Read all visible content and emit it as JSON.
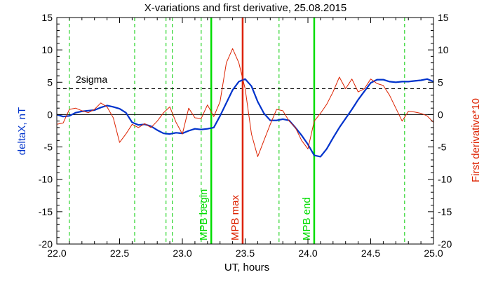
{
  "chart_data": {
    "type": "line",
    "title": "X-variations and first derivative, 25.08.2015",
    "xlabel": "UT, hours",
    "ylabel_left": "deltaX, nT",
    "ylabel_right": "First derivative*10",
    "xlim": [
      22.0,
      25.0
    ],
    "ylim_left": [
      -20,
      15
    ],
    "ylim_right": [
      -20,
      15
    ],
    "x_ticks": [
      "22.0",
      "22.5",
      "23.0",
      "23.5",
      "24.0",
      "24.5",
      "25.0"
    ],
    "y_ticks_left": [
      "-20",
      "-15",
      "-10",
      "-5",
      "0",
      "5",
      "10",
      "15"
    ],
    "y_ticks_right": [
      "-20",
      "-15",
      "-10",
      "-5",
      "0",
      "5",
      "10",
      "15"
    ],
    "colors": {
      "deltaX": "#0033cc",
      "derivative": "#dd2200",
      "mpb_bounds": "#00dd00",
      "mpb_max": "#dd2200",
      "markers": "#00cc00"
    },
    "threshold": {
      "label": "2sigma",
      "value": 4
    },
    "zero_line": 0,
    "vertical_lines": [
      {
        "x": 23.23,
        "label": "MPB begin",
        "color": "#00dd00"
      },
      {
        "x": 23.48,
        "label": "MPB max",
        "color": "#dd2200"
      },
      {
        "x": 24.05,
        "label": "MPB end",
        "color": "#00dd00"
      }
    ],
    "dashed_markers": [
      22.1,
      22.62,
      22.87,
      22.92,
      23.15,
      23.77,
      24.77
    ],
    "series": [
      {
        "name": "deltaX",
        "axis": "left",
        "x": [
          22.0,
          22.05,
          22.1,
          22.15,
          22.2,
          22.25,
          22.3,
          22.35,
          22.4,
          22.45,
          22.5,
          22.55,
          22.6,
          22.65,
          22.7,
          22.75,
          22.8,
          22.85,
          22.9,
          22.95,
          23.0,
          23.05,
          23.1,
          23.15,
          23.2,
          23.25,
          23.3,
          23.35,
          23.4,
          23.45,
          23.5,
          23.55,
          23.6,
          23.65,
          23.7,
          23.75,
          23.8,
          23.85,
          23.9,
          23.95,
          24.0,
          24.05,
          24.1,
          24.15,
          24.2,
          24.25,
          24.3,
          24.35,
          24.4,
          24.45,
          24.5,
          24.55,
          24.6,
          24.65,
          24.7,
          24.75,
          24.8,
          24.85,
          24.9,
          24.95,
          25.0
        ],
        "values": [
          0.0,
          -0.3,
          -0.2,
          0.3,
          0.5,
          0.6,
          0.7,
          1.1,
          1.4,
          1.2,
          0.9,
          0.3,
          -1.2,
          -1.6,
          -1.5,
          -1.8,
          -2.4,
          -2.9,
          -3.0,
          -2.8,
          -2.9,
          -2.5,
          -2.2,
          -2.3,
          -2.2,
          -2.0,
          -0.2,
          1.8,
          3.8,
          5.1,
          5.5,
          4.4,
          2.0,
          0.2,
          -0.9,
          -0.9,
          -0.7,
          -0.9,
          -2.0,
          -3.2,
          -4.6,
          -6.3,
          -6.5,
          -5.3,
          -3.6,
          -2.0,
          -0.6,
          0.8,
          2.3,
          3.6,
          4.9,
          5.4,
          5.4,
          5.1,
          5.0,
          5.1,
          5.1,
          5.2,
          5.3,
          5.5,
          5.1
        ]
      },
      {
        "name": "First derivative*10",
        "axis": "right",
        "x": [
          22.0,
          22.05,
          22.1,
          22.15,
          22.2,
          22.25,
          22.3,
          22.35,
          22.4,
          22.45,
          22.5,
          22.55,
          22.6,
          22.65,
          22.7,
          22.75,
          22.8,
          22.85,
          22.9,
          22.95,
          23.0,
          23.05,
          23.1,
          23.15,
          23.2,
          23.25,
          23.3,
          23.35,
          23.4,
          23.45,
          23.5,
          23.55,
          23.6,
          23.65,
          23.7,
          23.75,
          23.8,
          23.85,
          23.9,
          23.95,
          24.0,
          24.05,
          24.1,
          24.15,
          24.2,
          24.25,
          24.3,
          24.35,
          24.4,
          24.45,
          24.5,
          24.55,
          24.6,
          24.65,
          24.7,
          24.75,
          24.8,
          24.85,
          24.9,
          24.95,
          25.0
        ],
        "values": [
          -1.5,
          -1.3,
          0.8,
          1.0,
          0.6,
          0.3,
          0.8,
          1.8,
          1.2,
          -0.5,
          -4.3,
          -3.0,
          -1.5,
          -2.0,
          -1.4,
          -2.0,
          -1.0,
          0.3,
          1.2,
          -1.2,
          -3.0,
          1.0,
          -0.5,
          -0.6,
          1.5,
          -0.3,
          2.0,
          8.0,
          10.2,
          8.0,
          4.0,
          -3.0,
          -6.5,
          -4.0,
          -1.5,
          0.8,
          0.6,
          -1.0,
          -2.0,
          -4.0,
          -5.3,
          -1.0,
          0.2,
          1.6,
          3.5,
          5.8,
          4.0,
          5.5,
          3.5,
          4.0,
          5.5,
          4.8,
          4.5,
          3.0,
          1.0,
          -1.0,
          0.5,
          0.4,
          0.2,
          -0.2,
          -1.2
        ]
      }
    ]
  }
}
